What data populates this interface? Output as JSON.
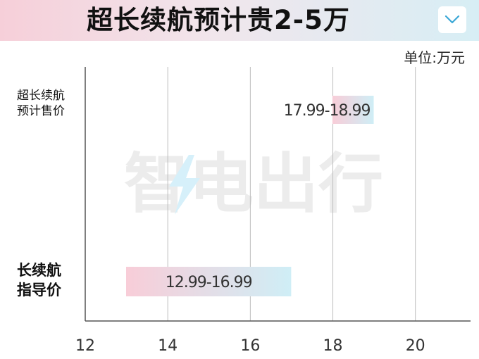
{
  "header": {
    "title": "超长续航预计贵2-5万"
  },
  "unit_label": "单位:万元",
  "watermark_text": "智电出行",
  "colors": {
    "bar_start": "#f8cdd8",
    "bar_end": "#cfeef6",
    "grid": "#bdbdbd",
    "axis": "#555555"
  },
  "chart_data": {
    "type": "bar",
    "orientation": "horizontal",
    "title": "超长续航预计贵2-5万",
    "unit": "单位:万元",
    "xlim": [
      12,
      21.2
    ],
    "x_ticks": [
      "12",
      "14",
      "16",
      "18",
      "20"
    ],
    "grid": true,
    "series": [
      {
        "label_lines": [
          "超长续航",
          "预计售价"
        ],
        "min": 17.99,
        "max": 18.99,
        "range_label": "17.99-18.99"
      },
      {
        "label_lines": [
          "长续航",
          "指导价"
        ],
        "min": 12.99,
        "max": 16.99,
        "range_label": "12.99-16.99"
      }
    ]
  }
}
